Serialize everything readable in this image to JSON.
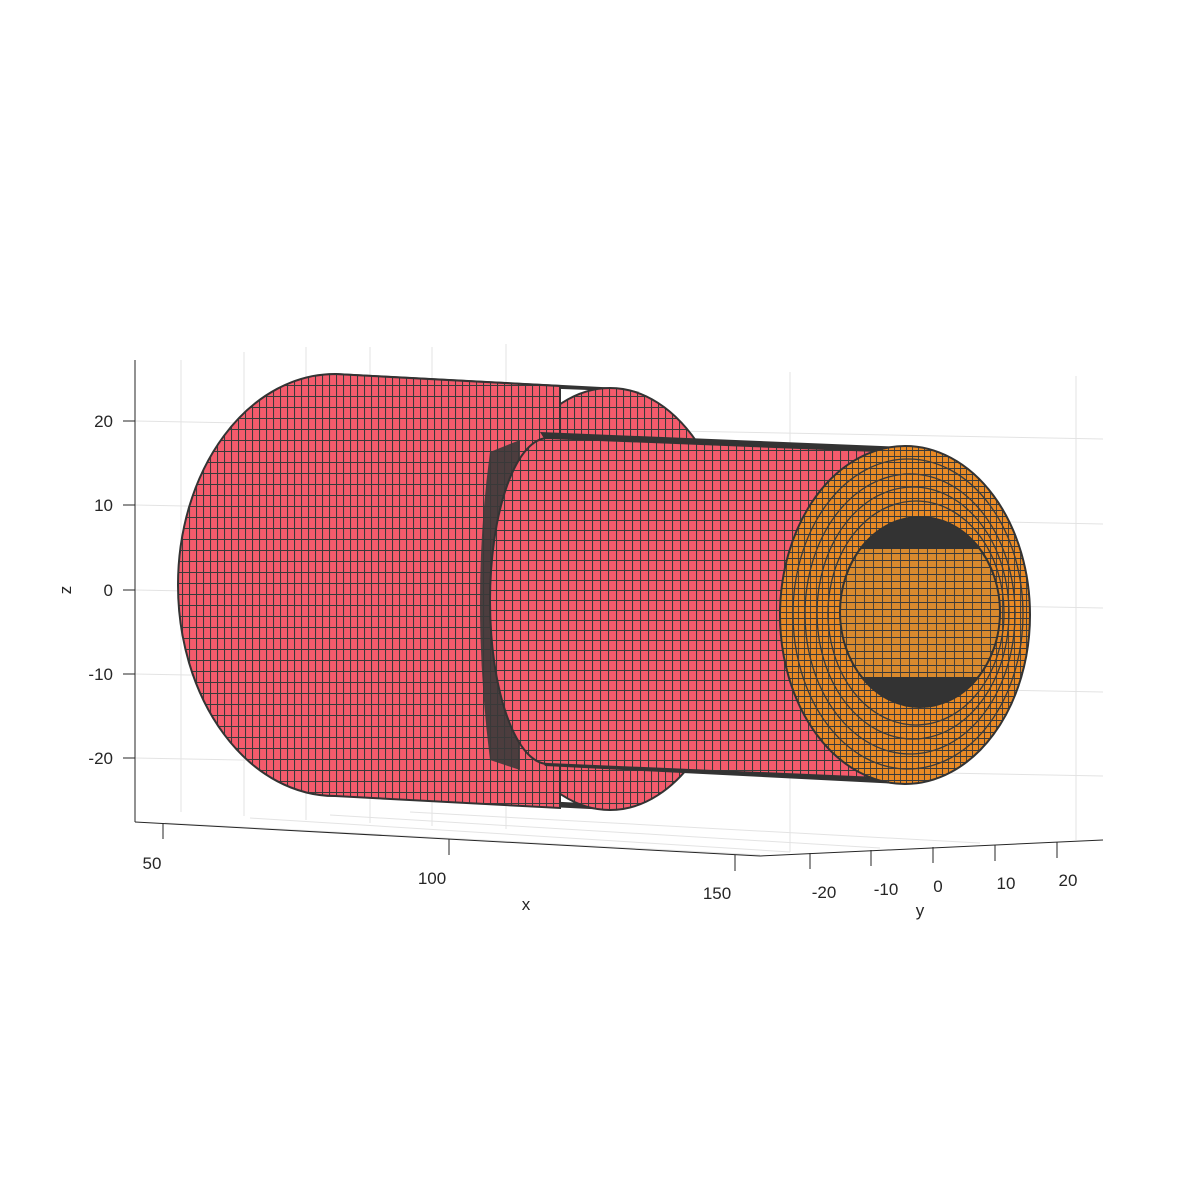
{
  "axes": {
    "x": {
      "label": "x",
      "ticks": [
        50,
        100,
        150
      ]
    },
    "y": {
      "label": "y",
      "ticks": [
        -20,
        -10,
        0,
        10,
        20
      ]
    },
    "z": {
      "label": "z",
      "ticks": [
        20,
        10,
        0,
        -10,
        -20
      ]
    }
  },
  "colors": {
    "outer_surface": "#f45b6c",
    "end_face": "#e98a25",
    "mesh_edge": "#333333",
    "grid": "#e3e3e3",
    "axis": "#262626"
  },
  "chart_data": {
    "type": "3d-surface",
    "title": "",
    "xlabel": "x",
    "ylabel": "y",
    "zlabel": "z",
    "xlim": [
      50,
      150
    ],
    "ylim": [
      -25,
      25
    ],
    "zlim": [
      -25,
      25
    ],
    "grid": true,
    "series": [
      {
        "part": "large-cylinder",
        "x_range": [
          55,
          113
        ],
        "radius": 25,
        "face": "outer_surface"
      },
      {
        "part": "small-cylinder",
        "x_range": [
          113,
          145
        ],
        "radius": 20,
        "face": "outer_surface"
      },
      {
        "part": "end-face-annulus",
        "x": 145,
        "outer_radius": 20,
        "inner_radius": 10,
        "face": "end_face"
      }
    ]
  }
}
